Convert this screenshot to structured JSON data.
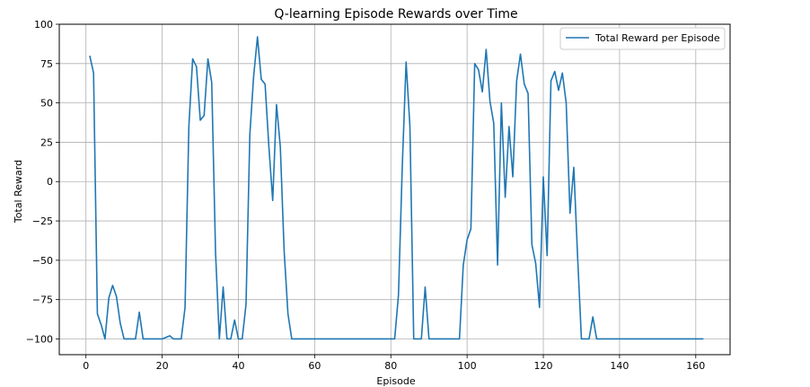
{
  "chart_data": {
    "type": "line",
    "title": "Q-learning Episode Rewards over Time",
    "xlabel": "Episode",
    "ylabel": "Total Reward",
    "xlim": [
      -7,
      169
    ],
    "ylim": [
      -110,
      100
    ],
    "xticks": [
      0,
      20,
      40,
      60,
      80,
      100,
      120,
      140,
      160
    ],
    "yticks": [
      -100,
      -75,
      -50,
      -25,
      0,
      25,
      50,
      75,
      100
    ],
    "grid": true,
    "legend_position": "top-right",
    "line_color": "#1f77b4",
    "series": [
      {
        "name": "Total Reward per Episode",
        "x": [
          1,
          2,
          3,
          4,
          5,
          6,
          7,
          8,
          9,
          10,
          11,
          12,
          13,
          14,
          15,
          16,
          17,
          18,
          19,
          20,
          21,
          22,
          23,
          24,
          25,
          26,
          27,
          28,
          29,
          30,
          31,
          32,
          33,
          34,
          35,
          36,
          37,
          38,
          39,
          40,
          41,
          42,
          43,
          44,
          45,
          46,
          47,
          48,
          49,
          50,
          51,
          52,
          53,
          54,
          55,
          56,
          57,
          58,
          59,
          60,
          61,
          62,
          63,
          64,
          65,
          66,
          67,
          68,
          69,
          70,
          71,
          72,
          73,
          74,
          75,
          76,
          77,
          78,
          79,
          80,
          81,
          82,
          83,
          84,
          85,
          86,
          87,
          88,
          89,
          90,
          91,
          92,
          93,
          94,
          95,
          96,
          97,
          98,
          99,
          100,
          101,
          102,
          103,
          104,
          105,
          106,
          107,
          108,
          109,
          110,
          111,
          112,
          113,
          114,
          115,
          116,
          117,
          118,
          119,
          120,
          121,
          122,
          123,
          124,
          125,
          126,
          127,
          128,
          129,
          130,
          131,
          132,
          133,
          134,
          135,
          136,
          137,
          138,
          139,
          140,
          141,
          142,
          143,
          144,
          145,
          146,
          147,
          148,
          149,
          150,
          151,
          152,
          153,
          154,
          155,
          156,
          157,
          158,
          159,
          160,
          161,
          162
        ],
        "y": [
          80,
          69,
          -84,
          -91,
          -100,
          -74,
          -66,
          -73,
          -90,
          -100,
          -100,
          -100,
          -100,
          -83,
          -100,
          -100,
          -100,
          -100,
          -100,
          -100,
          -99,
          -98,
          -100,
          -100,
          -100,
          -80,
          35,
          78,
          73,
          39,
          42,
          78,
          63,
          -45,
          -100,
          -67,
          -100,
          -100,
          -88,
          -100,
          -100,
          -78,
          30,
          67,
          92,
          65,
          62,
          22,
          -12,
          49,
          22,
          -44,
          -84,
          -100,
          -100,
          -100,
          -100,
          -100,
          -100,
          -100,
          -100,
          -100,
          -100,
          -100,
          -100,
          -100,
          -100,
          -100,
          -100,
          -100,
          -100,
          -100,
          -100,
          -100,
          -100,
          -100,
          -100,
          -100,
          -100,
          -100,
          -100,
          -72,
          10,
          76,
          35,
          -100,
          -100,
          -100,
          -67,
          -100,
          -100,
          -100,
          -100,
          -100,
          -100,
          -100,
          -100,
          -100,
          -53,
          -37,
          -30,
          75,
          71,
          57,
          84,
          51,
          37,
          -53,
          50,
          -10,
          35,
          3,
          64,
          81,
          62,
          56,
          -40,
          -52,
          -80,
          3,
          -47,
          64,
          70,
          58,
          69,
          50,
          -20,
          9,
          -48,
          -100,
          -100,
          -100,
          -86,
          -100,
          -100,
          -100,
          -100,
          -100,
          -100,
          -100,
          -100,
          -100,
          -100,
          -100,
          -100,
          -100,
          -100,
          -100,
          -100,
          -100,
          -100,
          -100,
          -100,
          -100,
          -100,
          -100,
          -100,
          -100,
          -100,
          -100,
          -100,
          -100
        ]
      }
    ]
  }
}
